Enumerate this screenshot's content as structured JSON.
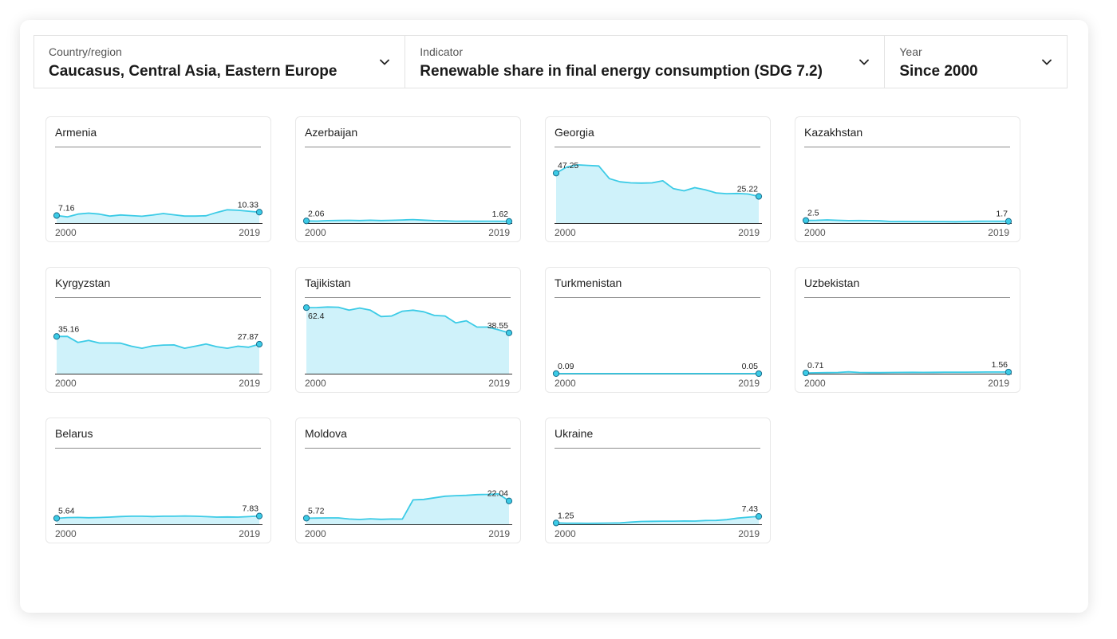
{
  "filters": {
    "country": {
      "label": "Country/region",
      "value": "Caucasus, Central Asia, Eastern Europe"
    },
    "indicator": {
      "label": "Indicator",
      "value": "Renewable share in final energy consumption (SDG 7.2)"
    },
    "year": {
      "label": "Year",
      "value": "Since 2000"
    }
  },
  "colors": {
    "line": "#3ccbe6",
    "fill": "#cff2fa",
    "marker_stroke": "#1b6e8c",
    "baseline": "#333333"
  },
  "icons": {
    "dropdown": "chevron-down-icon"
  },
  "chart_data": [
    {
      "type": "area",
      "title": "Armenia",
      "start_year": "2000",
      "end_year": "2019",
      "ylim": [
        0,
        70
      ],
      "values": [
        7.16,
        5.9,
        8.5,
        9.4,
        8.5,
        6.6,
        7.7,
        7.1,
        6.5,
        7.6,
        9.0,
        7.8,
        6.6,
        6.6,
        6.9,
        10.0,
        12.6,
        12.1,
        11.2,
        10.33
      ],
      "first_label": "7.16",
      "last_label": "10.33"
    },
    {
      "type": "area",
      "title": "Azerbaijan",
      "start_year": "2000",
      "end_year": "2019",
      "ylim": [
        0,
        70
      ],
      "values": [
        2.06,
        1.9,
        2.3,
        2.5,
        2.6,
        2.4,
        2.7,
        2.4,
        2.6,
        2.9,
        3.3,
        2.8,
        2.3,
        2.1,
        1.8,
        1.9,
        1.7,
        1.8,
        1.7,
        1.62
      ],
      "first_label": "2.06",
      "last_label": "1.62"
    },
    {
      "type": "area",
      "title": "Georgia",
      "start_year": "2000",
      "end_year": "2019",
      "ylim": [
        0,
        70
      ],
      "values": [
        47.25,
        53.0,
        55.0,
        54.5,
        54.0,
        42.0,
        39.0,
        38.0,
        37.8,
        38.0,
        40.0,
        32.5,
        30.5,
        33.5,
        31.5,
        28.5,
        27.8,
        28.0,
        27.5,
        25.22
      ],
      "first_label": "47.25",
      "last_label": "25.22"
    },
    {
      "type": "area",
      "title": "Kazakhstan",
      "start_year": "2000",
      "end_year": "2019",
      "ylim": [
        0,
        70
      ],
      "values": [
        2.5,
        2.6,
        3.0,
        2.6,
        2.3,
        2.4,
        2.3,
        2.1,
        1.5,
        1.6,
        1.5,
        1.5,
        1.4,
        1.4,
        1.3,
        1.5,
        1.7,
        1.8,
        1.7,
        1.7
      ],
      "first_label": "2.5",
      "last_label": "1.7"
    },
    {
      "type": "area",
      "title": "Kyrgyzstan",
      "start_year": "2000",
      "end_year": "2019",
      "ylim": [
        0,
        70
      ],
      "values": [
        35.16,
        35.2,
        29.5,
        31.5,
        29.0,
        29.0,
        28.8,
        26.0,
        24.0,
        26.3,
        27.0,
        27.2,
        24.0,
        26.0,
        28.0,
        25.5,
        24.0,
        26.0,
        25.0,
        27.87
      ],
      "first_label": "35.16",
      "last_label": "27.87"
    },
    {
      "type": "area",
      "title": "Tajikistan",
      "start_year": "2000",
      "end_year": "2019",
      "ylim": [
        0,
        70
      ],
      "values": [
        62.4,
        62.5,
        63.0,
        62.8,
        60.0,
        62.0,
        60.0,
        54.0,
        54.5,
        59.0,
        60.0,
        58.5,
        55.0,
        54.5,
        48.0,
        50.0,
        44.0,
        44.0,
        41.5,
        38.55
      ],
      "first_label": "62.4",
      "last_label": "38.55"
    },
    {
      "type": "area",
      "title": "Turkmenistan",
      "start_year": "2000",
      "end_year": "2019",
      "ylim": [
        0,
        70
      ],
      "values": [
        0.09,
        0.08,
        0.08,
        0.07,
        0.07,
        0.07,
        0.06,
        0.06,
        0.06,
        0.06,
        0.06,
        0.06,
        0.05,
        0.05,
        0.05,
        0.05,
        0.05,
        0.05,
        0.05,
        0.05
      ],
      "first_label": "0.09",
      "last_label": "0.05"
    },
    {
      "type": "area",
      "title": "Uzbekistan",
      "start_year": "2000",
      "end_year": "2019",
      "ylim": [
        0,
        70
      ],
      "values": [
        0.71,
        0.8,
        1.0,
        1.1,
        1.7,
        1.1,
        1.0,
        1.0,
        1.1,
        1.2,
        1.3,
        1.2,
        1.3,
        1.4,
        1.4,
        1.4,
        1.5,
        1.6,
        1.6,
        1.56
      ],
      "first_label": "0.71",
      "last_label": "1.56"
    },
    {
      "type": "area",
      "title": "Belarus",
      "start_year": "2000",
      "end_year": "2019",
      "ylim": [
        0,
        70
      ],
      "values": [
        5.64,
        6.3,
        6.5,
        6.2,
        6.4,
        6.8,
        7.3,
        7.6,
        7.6,
        7.3,
        7.6,
        7.6,
        7.8,
        7.6,
        7.2,
        6.8,
        6.9,
        6.8,
        7.2,
        7.83
      ],
      "first_label": "5.64",
      "last_label": "7.83"
    },
    {
      "type": "area",
      "title": "Moldova",
      "start_year": "2000",
      "end_year": "2019",
      "ylim": [
        0,
        70
      ],
      "values": [
        5.72,
        5.9,
        6.0,
        6.0,
        5.0,
        4.5,
        5.2,
        4.7,
        5.0,
        4.9,
        23.0,
        23.5,
        25.0,
        26.5,
        27.0,
        27.3,
        28.0,
        28.2,
        28.7,
        22.04
      ],
      "first_label": "5.72",
      "last_label": "22.04"
    },
    {
      "type": "area",
      "title": "Ukraine",
      "start_year": "2000",
      "end_year": "2019",
      "ylim": [
        0,
        70
      ],
      "values": [
        1.25,
        1.0,
        1.0,
        0.9,
        1.0,
        1.1,
        1.3,
        2.0,
        2.6,
        2.8,
        2.9,
        2.9,
        3.1,
        3.0,
        3.5,
        3.6,
        4.4,
        5.8,
        6.7,
        7.43
      ],
      "first_label": "1.25",
      "last_label": "7.43"
    }
  ]
}
